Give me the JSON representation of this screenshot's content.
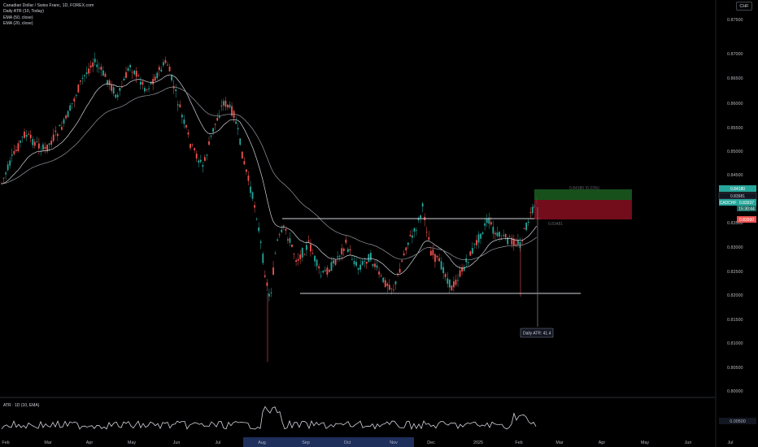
{
  "legend": {
    "symbol_line": "Canadian Dollar / Swiss Franc, 1D, FOREX.com",
    "indicator1": "Daily ATR (10, Today)",
    "indicator2": "EMA (50, close)",
    "indicator3": "EMA (20, close)"
  },
  "currency_button": "CHF",
  "price_axis": [
    "0.87500",
    "0.87000",
    "0.86500",
    "0.86000",
    "0.85500",
    "0.85000",
    "0.84500",
    "0.84000",
    "0.83500",
    "0.83000",
    "0.82500",
    "0.82000",
    "0.81500",
    "0.81000",
    "0.80500",
    "0.80000"
  ],
  "price_tags": {
    "target": "0.84180",
    "current": "0.83981",
    "last": "0.83937",
    "symbol": "CADCHF",
    "countdown": "15:30:44",
    "stop": "0.83560"
  },
  "chart_annotations": {
    "target_label": "0.84180 (0.23%)",
    "resistance_label": "0.83481",
    "atr_label": "Daily ATR: 41.4"
  },
  "atr_pane": {
    "title": "ATR · 1D (10, EMA)",
    "axis_value": "0.00500"
  },
  "time_axis": [
    "Feb",
    "Mar",
    "Apr",
    "May",
    "Jun",
    "Jul",
    "Aug",
    "Sep",
    "Oct",
    "Nov",
    "Dec",
    "2025",
    "Feb",
    "Mar",
    "Apr",
    "May",
    "Jun",
    "Jul"
  ],
  "colors": {
    "up": "#26a69a",
    "down": "#ef5350",
    "ema_fast": "#d1d4dc",
    "ema_slow": "#9598a1",
    "profit_zone": "#1b5e20",
    "loss_zone": "#7f0d1e",
    "highlight": "#1e2f5c"
  }
}
